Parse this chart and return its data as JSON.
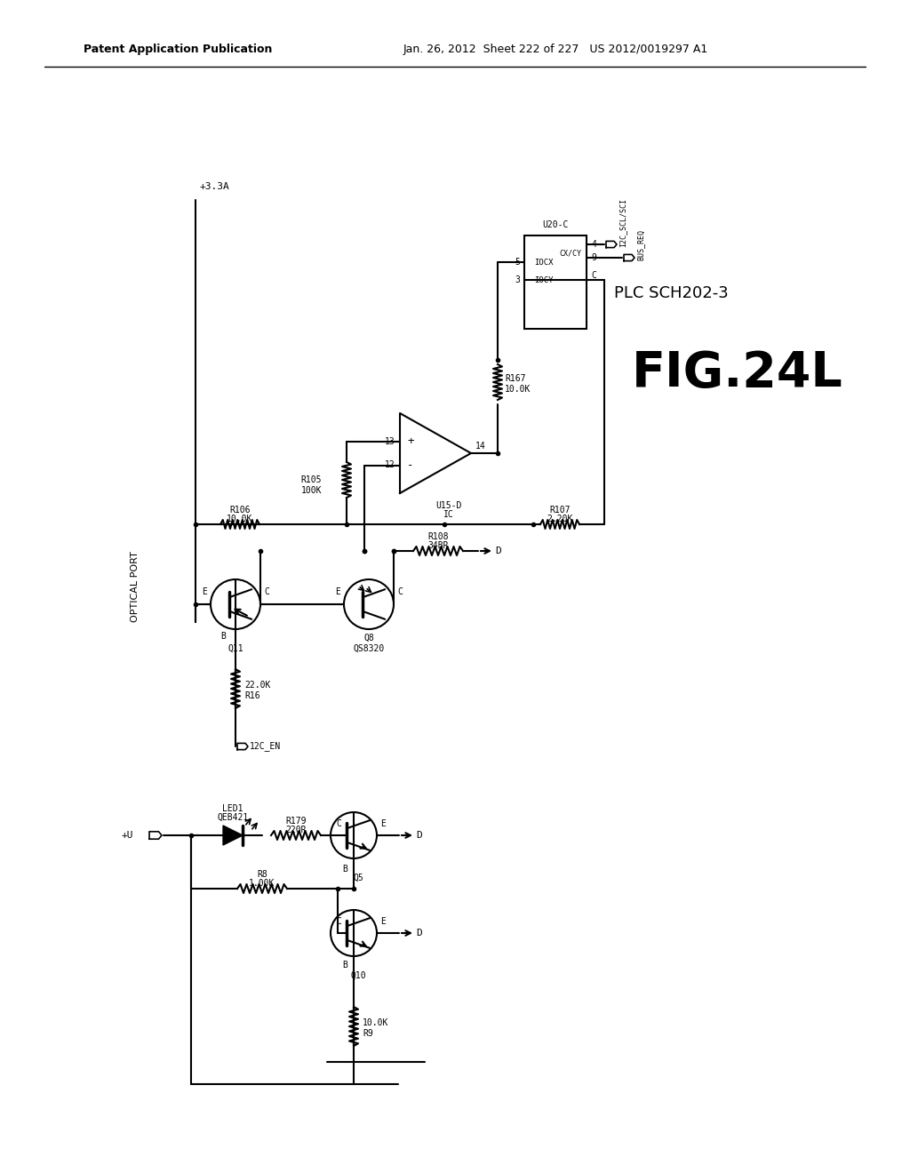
{
  "title": "FIG.24L",
  "subtitle": "PLC SCH202-3",
  "header_left": "Patent Application Publication",
  "header_right": "Jan. 26, 2012  Sheet 222 of 227   US 2012/0019297 A1",
  "bg_color": "#ffffff",
  "line_color": "#000000",
  "font_color": "#000000"
}
